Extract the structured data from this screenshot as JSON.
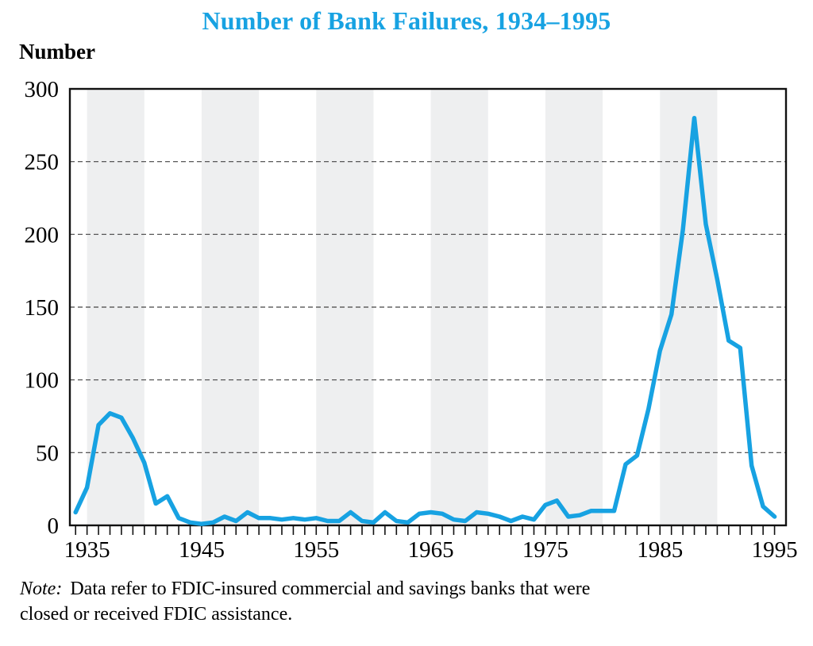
{
  "title": "Number of Bank Failures, 1934–1995",
  "y_axis_title": "Number",
  "note": {
    "prefix": "Note:",
    "line1": "Data refer to FDIC-insured commercial and savings banks that were",
    "line2": "closed or received FDIC assistance."
  },
  "colors": {
    "accent": "#17A2E2",
    "band": "#EEEFF0",
    "grid": "#444444",
    "frame": "#111111"
  },
  "chart_data": {
    "type": "line",
    "title": "Number of Bank Failures, 1934–1995",
    "xlabel": "",
    "ylabel": "Number",
    "ylim": [
      0,
      300
    ],
    "xlim": [
      1933.5,
      1996
    ],
    "yticks": [
      0,
      50,
      100,
      150,
      200,
      250,
      300
    ],
    "xtick_labels": [
      1935,
      1945,
      1955,
      1965,
      1975,
      1985,
      1995
    ],
    "grid": "dashed-horizontal",
    "legend": "none",
    "bands": [
      [
        1935,
        1940
      ],
      [
        1945,
        1950
      ],
      [
        1955,
        1960
      ],
      [
        1965,
        1970
      ],
      [
        1975,
        1980
      ],
      [
        1985,
        1990
      ]
    ],
    "x": [
      1934,
      1935,
      1936,
      1937,
      1938,
      1939,
      1940,
      1941,
      1942,
      1943,
      1944,
      1945,
      1946,
      1947,
      1948,
      1949,
      1950,
      1951,
      1952,
      1953,
      1954,
      1955,
      1956,
      1957,
      1958,
      1959,
      1960,
      1961,
      1962,
      1963,
      1964,
      1965,
      1966,
      1967,
      1968,
      1969,
      1970,
      1971,
      1972,
      1973,
      1974,
      1975,
      1976,
      1977,
      1978,
      1979,
      1980,
      1981,
      1982,
      1983,
      1984,
      1985,
      1986,
      1987,
      1988,
      1989,
      1990,
      1991,
      1992,
      1993,
      1994,
      1995
    ],
    "values": [
      9,
      26,
      69,
      77,
      74,
      60,
      43,
      15,
      20,
      5,
      2,
      1,
      2,
      6,
      3,
      9,
      5,
      5,
      4,
      5,
      4,
      5,
      3,
      3,
      9,
      3,
      2,
      9,
      3,
      2,
      8,
      9,
      8,
      4,
      3,
      9,
      8,
      6,
      3,
      6,
      4,
      14,
      17,
      6,
      7,
      10,
      10,
      10,
      42,
      48,
      80,
      120,
      145,
      203,
      280,
      207,
      169,
      127,
      122,
      41,
      13,
      6
    ]
  }
}
